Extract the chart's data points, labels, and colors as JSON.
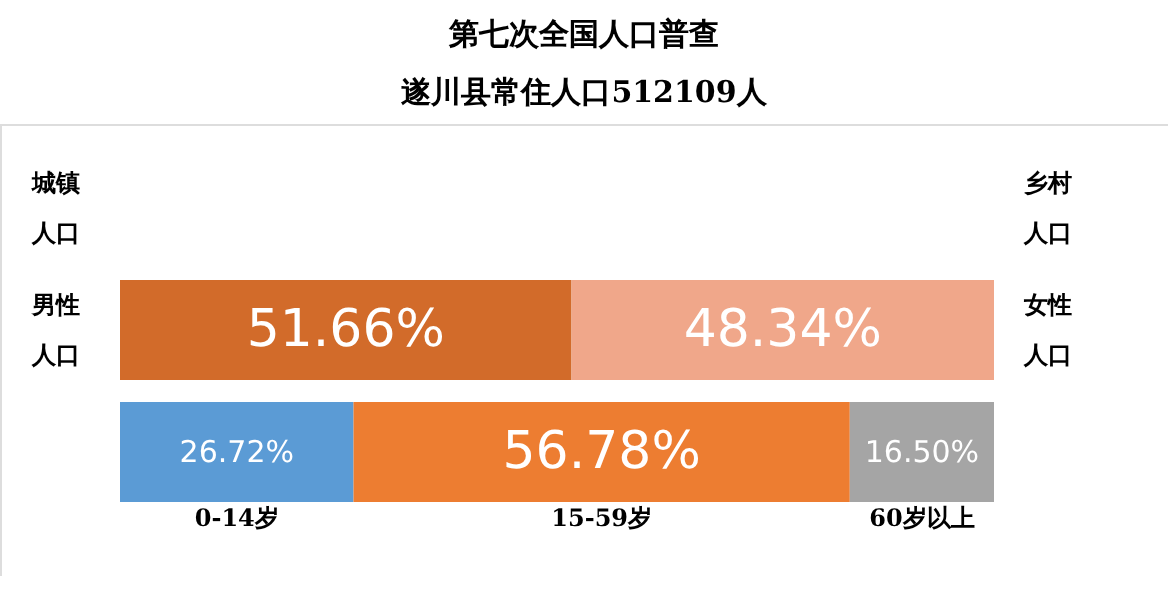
{
  "chart_data": {
    "type": "bar",
    "orientation": "horizontal",
    "stacked": true,
    "title": "第七次全国人口普查",
    "subtitle": "遂川县常住人口512109人",
    "categories": [
      null,
      null
    ],
    "series": [
      {
        "name": "男性人口",
        "color": "#d26b2a",
        "values": [
          51.66,
          null
        ],
        "value_labels": [
          "51.66%",
          null
        ]
      },
      {
        "name": "女性人口",
        "color": "#f0a78a",
        "values": [
          48.34,
          null
        ],
        "value_labels": [
          "48.34%",
          null
        ]
      },
      {
        "name": "0-14岁",
        "color": "#5b9bd5",
        "values": [
          null,
          26.72
        ],
        "value_labels": [
          null,
          "26.72%"
        ]
      },
      {
        "name": "15-59岁",
        "color": "#ed7d31",
        "values": [
          null,
          56.78
        ],
        "value_labels": [
          null,
          "56.78%"
        ]
      },
      {
        "name": "60岁以上",
        "color": "#a5a5a5",
        "values": [
          null,
          16.5
        ],
        "value_labels": [
          null,
          "16.50%"
        ]
      }
    ],
    "annotations": [
      "城镇人口",
      "乡村人口"
    ],
    "legend": false
  }
}
